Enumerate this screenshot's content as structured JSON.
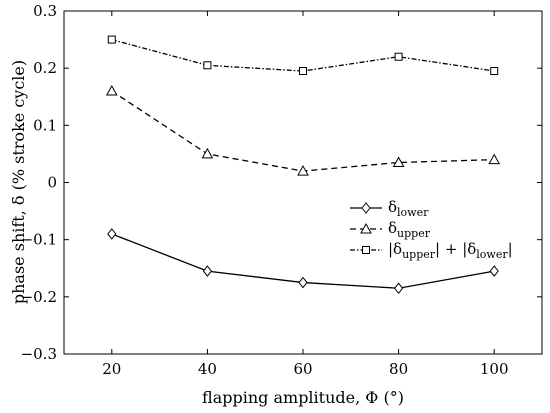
{
  "chart_data": {
    "type": "line",
    "xlabel": "flapping amplitude, Φ (°)",
    "ylabel": "phase shift, δ (% stroke cycle)",
    "x": [
      20,
      40,
      60,
      80,
      100
    ],
    "xlim": [
      10,
      110
    ],
    "ylim": [
      -0.3,
      0.3
    ],
    "xticks": [
      "20",
      "40",
      "60",
      "80",
      "100"
    ],
    "yticks": [
      "0.3",
      "0.2",
      "0.1",
      "0",
      "−0.1",
      "−0.2",
      "−0.3"
    ],
    "legend_position": "center-right",
    "series": [
      {
        "name": "δlower",
        "values": [
          -0.09,
          -0.155,
          -0.175,
          -0.185,
          -0.155
        ],
        "line_style": "solid",
        "marker": "diamond"
      },
      {
        "name": "δupper",
        "values": [
          0.16,
          0.05,
          0.02,
          0.035,
          0.04
        ],
        "line_style": "dashed",
        "marker": "triangle"
      },
      {
        "name": "|δupper| + |δlower|",
        "values": [
          0.25,
          0.205,
          0.195,
          0.22,
          0.195
        ],
        "line_style": "dashdot",
        "marker": "square"
      }
    ]
  },
  "legend_labels": {
    "lower": {
      "main": "δ",
      "sub": "lower"
    },
    "upper": {
      "main": "δ",
      "sub": "upper"
    },
    "sum": {
      "p1": "|δ",
      "s1": "upper",
      "p2": "| + |δ",
      "s2": "lower",
      "p3": "|"
    }
  }
}
